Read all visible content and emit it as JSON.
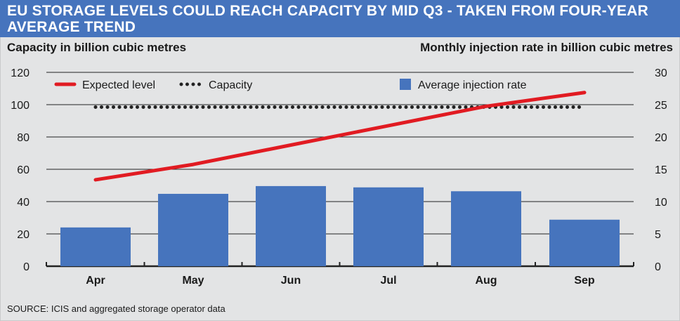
{
  "header": {
    "title": "EU STORAGE LEVELS COULD REACH CAPACITY BY MID Q3 - TAKEN FROM FOUR-YEAR AVERAGE TREND"
  },
  "source": "SOURCE: ICIS and aggregated storage operator data",
  "colors": {
    "header_bg": "#4674bd",
    "bar": "#4674bd",
    "expected_line": "#e11b22",
    "capacity_dots": "#222222",
    "background": "#e3e4e5"
  },
  "chart_data": {
    "type": "bar",
    "categories": [
      "Apr",
      "May",
      "Jun",
      "Jul",
      "Aug",
      "Sep"
    ],
    "left_axis": {
      "title": "Capacity in billion cubic metres",
      "ylim": [
        0,
        120
      ],
      "ticks": [
        0,
        20,
        40,
        60,
        80,
        100,
        120
      ]
    },
    "right_axis": {
      "title": "Monthly injection rate in billion cubic metres",
      "ylim": [
        0,
        30
      ],
      "ticks": [
        0,
        5,
        10,
        15,
        20,
        25,
        30
      ]
    },
    "grid": true,
    "legend_placement": "top",
    "series": [
      {
        "name": "Average injection rate",
        "kind": "bar",
        "axis": "right",
        "values": [
          6.0,
          11.2,
          12.4,
          12.2,
          11.6,
          7.2
        ]
      },
      {
        "name": "Expected level",
        "kind": "line",
        "axis": "left",
        "values": [
          53.5,
          63,
          75,
          87,
          99,
          107.5
        ]
      },
      {
        "name": "Capacity",
        "kind": "dotted-line",
        "axis": "left",
        "values": [
          98.5,
          98.5,
          98.5,
          98.5,
          98.5,
          98.5
        ]
      }
    ]
  }
}
